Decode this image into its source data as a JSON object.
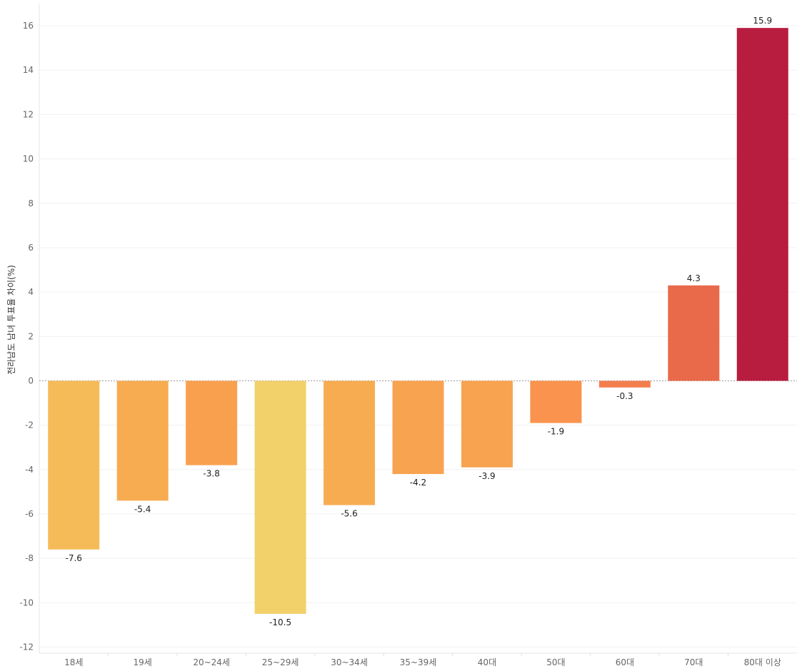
{
  "chart_data": {
    "type": "bar",
    "ylabel": "전라남도 남녀 투표율 차이(%)",
    "xlabel": "",
    "categories": [
      "18세",
      "19세",
      "20~24세",
      "25~29세",
      "30~34세",
      "35~39세",
      "40대",
      "50대",
      "60대",
      "70대",
      "80대 이상"
    ],
    "values": [
      -7.6,
      -5.4,
      -3.8,
      -10.5,
      -5.6,
      -4.2,
      -3.9,
      -1.9,
      -0.3,
      4.3,
      15.9
    ],
    "value_labels": [
      "-7.6",
      "-5.4",
      "-3.8",
      "-10.5",
      "-5.6",
      "-4.2",
      "-3.9",
      "-1.9",
      "-0.3",
      "4.3",
      "15.9"
    ],
    "colors": [
      "#F6BB59",
      "#F7AC52",
      "#F9A04F",
      "#F2D06A",
      "#F7AC52",
      "#F8A350",
      "#F8A350",
      "#F9934D",
      "#F37E4D",
      "#E9694B",
      "#B81C3E"
    ],
    "ylim": [
      -12.5,
      16.5
    ],
    "yticks": [
      16,
      14,
      12,
      10,
      8,
      6,
      4,
      2,
      0,
      -2,
      -4,
      -6,
      -8,
      -10,
      -12
    ],
    "ytick_labels": [
      "16",
      "14",
      "12",
      "10",
      "8",
      "6",
      "4",
      "2",
      "0",
      "-2",
      "-4",
      "-6",
      "-8",
      "-10",
      "-12"
    ],
    "grid": true,
    "legend": "none"
  }
}
